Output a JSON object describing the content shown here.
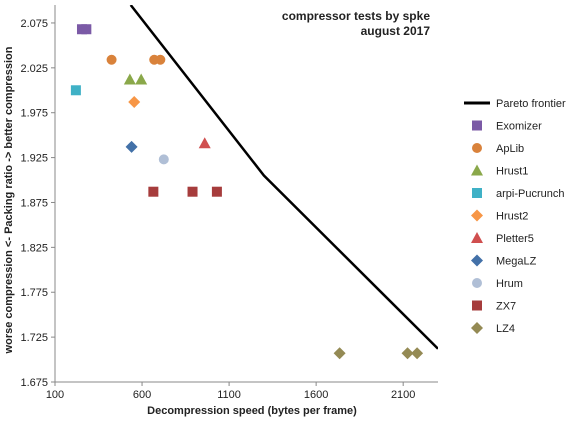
{
  "chart_data": {
    "type": "scatter",
    "title_lines": [
      "compressor tests by spke",
      "august 2017"
    ],
    "xlabel": "Decompression speed (bytes per frame)",
    "ylabel": "worse compression <- Packing ratio -> better compression",
    "xlim": [
      100,
      2300
    ],
    "ylim": [
      1.675,
      2.095
    ],
    "xticks": [
      100,
      600,
      1100,
      1600,
      2100
    ],
    "xtick_labels": [
      "100",
      "600",
      "1100",
      "1600",
      "2100"
    ],
    "yticks": [
      1.675,
      1.725,
      1.775,
      1.825,
      1.875,
      1.925,
      1.975,
      2.025,
      2.075
    ],
    "ytick_labels": [
      "1.675",
      "1.725",
      "1.775",
      "1.825",
      "1.875",
      "1.925",
      "1.975",
      "2.025",
      "2.075"
    ],
    "grid": false,
    "legend_position": "right",
    "pareto_frontier": {
      "name": "Pareto frontier",
      "color": "#000000",
      "points": [
        [
          535,
          2.095
        ],
        [
          1300,
          1.905
        ],
        [
          2300,
          1.712
        ]
      ]
    },
    "series": [
      {
        "name": "Exomizer",
        "marker": "square",
        "color": "#7b5aa6",
        "points": [
          [
            255,
            2.068
          ],
          [
            280,
            2.068
          ]
        ]
      },
      {
        "name": "ApLib",
        "marker": "circle",
        "color": "#d9823b",
        "points": [
          [
            425,
            2.034
          ],
          [
            670,
            2.034
          ],
          [
            705,
            2.034
          ]
        ]
      },
      {
        "name": "Hrust1",
        "marker": "triangle",
        "color": "#8aa84a",
        "points": [
          [
            530,
            2.012
          ],
          [
            595,
            2.012
          ]
        ]
      },
      {
        "name": "arpi-Pucrunch",
        "marker": "square",
        "color": "#3fb1c6",
        "points": [
          [
            220,
            2.0
          ]
        ]
      },
      {
        "name": "Hrust2",
        "marker": "diamond",
        "color": "#f79646",
        "points": [
          [
            555,
            1.987
          ]
        ]
      },
      {
        "name": "Pletter5",
        "marker": "triangle",
        "color": "#d04f4f",
        "points": [
          [
            960,
            1.941
          ]
        ]
      },
      {
        "name": "MegaLZ",
        "marker": "diamond",
        "color": "#4371a8",
        "points": [
          [
            540,
            1.937
          ]
        ]
      },
      {
        "name": "Hrum",
        "marker": "circle",
        "color": "#b0bfd6",
        "points": [
          [
            725,
            1.923
          ]
        ]
      },
      {
        "name": "ZX7",
        "marker": "square",
        "color": "#a63c3c",
        "points": [
          [
            665,
            1.887
          ],
          [
            890,
            1.887
          ],
          [
            1030,
            1.887
          ]
        ]
      },
      {
        "name": "LZ4",
        "marker": "diamond",
        "color": "#948a54",
        "points": [
          [
            1735,
            1.707
          ],
          [
            2125,
            1.707
          ],
          [
            2180,
            1.707
          ]
        ]
      }
    ]
  }
}
